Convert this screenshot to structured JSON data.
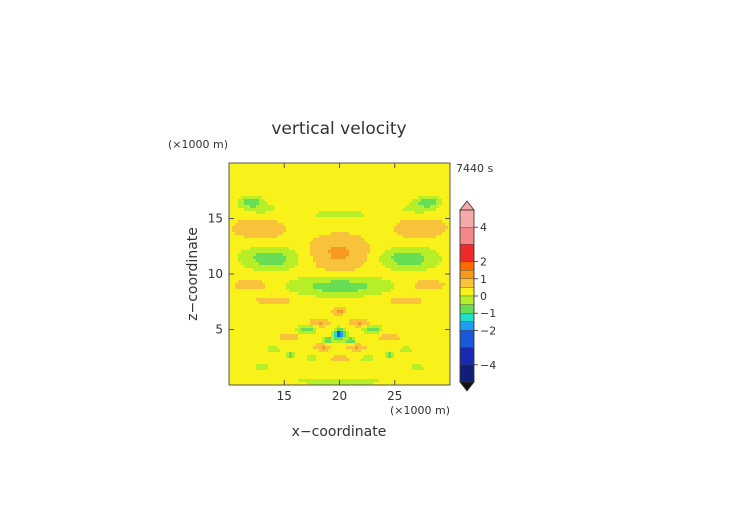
{
  "chart_data": {
    "type": "heatmap",
    "title": "vertical velocity",
    "xlabel": "x−coordinate",
    "ylabel": "z−coordinate",
    "x_unit": "(×1000 m)",
    "y_unit": "(×1000 m)",
    "time_label": "7440 s",
    "xlim": [
      10,
      30
    ],
    "ylim": [
      0,
      20
    ],
    "x_ticks": [
      15,
      20,
      25
    ],
    "x_tick_labels": [
      "15",
      "20",
      "25"
    ],
    "y_ticks": [
      5,
      10,
      15
    ],
    "y_tick_labels": [
      "5",
      "10",
      "15"
    ],
    "colorbar": {
      "tick_values": [
        4,
        2,
        1,
        0,
        -1,
        -2,
        -4
      ],
      "tick_labels": [
        "4",
        "2",
        "1",
        "0",
        "−1",
        "−2",
        "−4"
      ],
      "levels": [
        {
          "lo": 4.0,
          "hi": 5.0,
          "color": "#f7a8a8"
        },
        {
          "lo": 3.0,
          "hi": 4.0,
          "color": "#f48888"
        },
        {
          "lo": 2.0,
          "hi": 3.0,
          "color": "#ee2a2a"
        },
        {
          "lo": 1.5,
          "hi": 2.0,
          "color": "#ff6a00"
        },
        {
          "lo": 1.0,
          "hi": 1.5,
          "color": "#f79a1e"
        },
        {
          "lo": 0.5,
          "hi": 1.0,
          "color": "#f8c23a"
        },
        {
          "lo": 0.0,
          "hi": 0.5,
          "color": "#f8f21a"
        },
        {
          "lo": -0.5,
          "hi": 0.0,
          "color": "#b6ee28"
        },
        {
          "lo": -1.0,
          "hi": -0.5,
          "color": "#66dd55"
        },
        {
          "lo": -1.5,
          "hi": -1.0,
          "color": "#22ddc8"
        },
        {
          "lo": -2.0,
          "hi": -1.5,
          "color": "#1e9cf0"
        },
        {
          "lo": -3.0,
          "hi": -2.0,
          "color": "#1a5ad8"
        },
        {
          "lo": -4.0,
          "hi": -3.0,
          "color": "#1a2ab0"
        },
        {
          "lo": -5.0,
          "hi": -4.0,
          "color": "#111e7a"
        }
      ]
    },
    "background_value": 0.25,
    "features": [
      {
        "x": 20,
        "z": 19.4,
        "sx": 4.0,
        "sz": 1.0,
        "w": 0.15
      },
      {
        "x": 20,
        "z": 15.3,
        "sx": 6.0,
        "sz": 1.0,
        "w": -0.3
      },
      {
        "x": 12.8,
        "z": 15.8,
        "sx": 1.8,
        "sz": 0.7,
        "w": -0.35
      },
      {
        "x": 27.2,
        "z": 15.8,
        "sx": 1.8,
        "sz": 0.7,
        "w": -0.35
      },
      {
        "x": 12.8,
        "z": 14.2,
        "sx": 2.4,
        "sz": 1.0,
        "w": 0.75
      },
      {
        "x": 27.2,
        "z": 14.2,
        "sx": 2.4,
        "sz": 1.0,
        "w": 0.75
      },
      {
        "x": 12.0,
        "z": 16.5,
        "sx": 1.0,
        "sz": 0.5,
        "w": -1.1
      },
      {
        "x": 28.0,
        "z": 16.5,
        "sx": 1.0,
        "sz": 0.5,
        "w": -1.1
      },
      {
        "x": 20,
        "z": 11.9,
        "sx": 2.8,
        "sz": 1.7,
        "w": 0.85
      },
      {
        "x": 13.8,
        "z": 11.4,
        "sx": 2.5,
        "sz": 1.0,
        "w": -1.1
      },
      {
        "x": 26.2,
        "z": 11.4,
        "sx": 2.5,
        "sz": 1.0,
        "w": -1.1
      },
      {
        "x": 20,
        "z": 8.9,
        "sx": 4.2,
        "sz": 0.85,
        "w": -1.1
      },
      {
        "x": 12.0,
        "z": 9.0,
        "sx": 1.6,
        "sz": 0.5,
        "w": 0.65
      },
      {
        "x": 28.0,
        "z": 9.0,
        "sx": 1.6,
        "sz": 0.5,
        "w": 0.65
      },
      {
        "x": 14.0,
        "z": 7.6,
        "sx": 1.6,
        "sz": 0.4,
        "w": 0.65
      },
      {
        "x": 26.0,
        "z": 7.6,
        "sx": 1.6,
        "sz": 0.4,
        "w": 0.65
      },
      {
        "x": 20,
        "z": 6.7,
        "sx": 0.6,
        "sz": 0.4,
        "w": 0.9
      },
      {
        "x": 18.2,
        "z": 5.6,
        "sx": 0.9,
        "sz": 0.35,
        "w": 0.8
      },
      {
        "x": 21.8,
        "z": 5.6,
        "sx": 0.9,
        "sz": 0.35,
        "w": 0.8
      },
      {
        "x": 17.0,
        "z": 5.0,
        "sx": 0.8,
        "sz": 0.35,
        "w": -1.15
      },
      {
        "x": 23.0,
        "z": 5.0,
        "sx": 0.8,
        "sz": 0.35,
        "w": -1.15
      },
      {
        "x": 15.5,
        "z": 4.3,
        "sx": 1.0,
        "sz": 0.35,
        "w": 0.6
      },
      {
        "x": 24.5,
        "z": 4.3,
        "sx": 1.0,
        "sz": 0.35,
        "w": 0.6
      },
      {
        "x": 20,
        "z": 4.6,
        "sx": 0.5,
        "sz": 0.45,
        "w": -2.6
      },
      {
        "x": 19.0,
        "z": 4.0,
        "sx": 0.45,
        "sz": 0.3,
        "w": -1.3
      },
      {
        "x": 21.0,
        "z": 4.0,
        "sx": 0.45,
        "sz": 0.3,
        "w": -1.3
      },
      {
        "x": 18.5,
        "z": 3.4,
        "sx": 0.8,
        "sz": 0.3,
        "w": 0.8
      },
      {
        "x": 21.5,
        "z": 3.4,
        "sx": 0.8,
        "sz": 0.3,
        "w": 0.8
      },
      {
        "x": 14.0,
        "z": 3.2,
        "sx": 0.8,
        "sz": 0.3,
        "w": -0.45
      },
      {
        "x": 26.0,
        "z": 3.2,
        "sx": 0.8,
        "sz": 0.3,
        "w": -0.45
      },
      {
        "x": 15.5,
        "z": 2.7,
        "sx": 0.35,
        "sz": 0.25,
        "w": -1.2
      },
      {
        "x": 24.5,
        "z": 2.7,
        "sx": 0.35,
        "sz": 0.25,
        "w": -1.2
      },
      {
        "x": 22.5,
        "z": 2.4,
        "sx": 0.6,
        "sz": 0.3,
        "w": -0.55
      },
      {
        "x": 17.5,
        "z": 2.4,
        "sx": 0.6,
        "sz": 0.3,
        "w": -0.55
      },
      {
        "x": 20,
        "z": 2.4,
        "sx": 1.5,
        "sz": 0.35,
        "w": 0.35
      },
      {
        "x": 13.0,
        "z": 1.6,
        "sx": 1.0,
        "sz": 0.3,
        "w": -0.4
      },
      {
        "x": 27.0,
        "z": 1.6,
        "sx": 1.0,
        "sz": 0.3,
        "w": -0.4
      },
      {
        "x": 20,
        "z": 0.3,
        "sx": 6.0,
        "sz": 0.35,
        "w": -0.4
      }
    ]
  }
}
